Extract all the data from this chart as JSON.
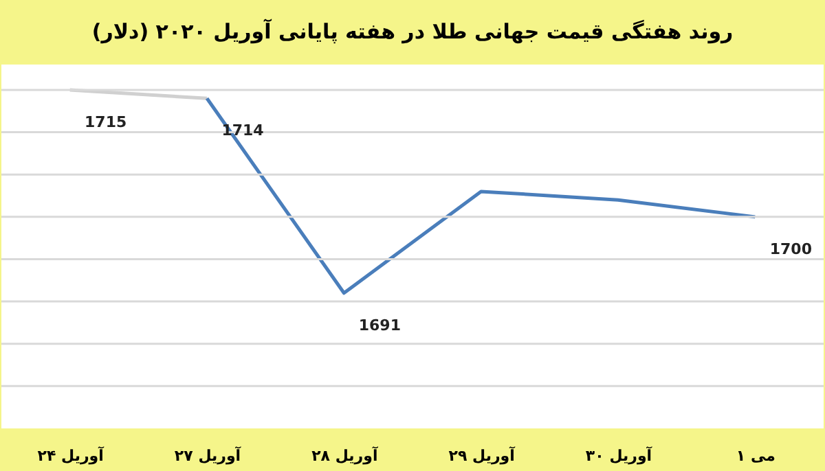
{
  "chart_data": {
    "type": "line",
    "title": "روند هفتگی قیمت جهانی طلا در هفته پایانی آوریل ۲۰۲۰ (دلار)",
    "categories": [
      "۲۴ آوریل",
      "۲۷ آوریل",
      "۲۸ آوریل",
      "۲۹ آوریل",
      "۳۰ آوریل",
      "۱ می"
    ],
    "series": [
      {
        "color": "#d0d0d0",
        "values": [
          1715,
          1714,
          null,
          null,
          null,
          null
        ],
        "value_labels": [
          "1715",
          null,
          null,
          null,
          null,
          null
        ]
      },
      {
        "color": "#4a7ebb",
        "values": [
          null,
          1714,
          1691,
          1703,
          1702,
          1700
        ],
        "value_labels": [
          null,
          "1714",
          "1691",
          null,
          null,
          "1700"
        ]
      }
    ],
    "ylim": [
      1675,
      1718
    ],
    "yticks": [
      {
        "value": 1680,
        "label": null
      },
      {
        "value": 1685,
        "label": null
      },
      {
        "value": 1690,
        "label": null
      },
      {
        "value": 1695,
        "label": null
      },
      {
        "value": 1700,
        "label": null
      },
      {
        "value": 1705,
        "label": null
      },
      {
        "value": 1710,
        "label": null
      },
      {
        "value": 1715,
        "label": null
      }
    ],
    "tick_labels": "x",
    "grid": "y",
    "legend": false,
    "marker": "none",
    "line_style": "solid"
  }
}
